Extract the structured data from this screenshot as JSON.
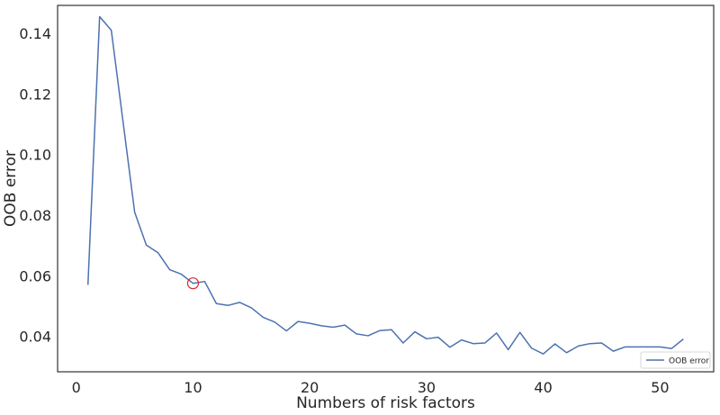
{
  "chart_data": {
    "type": "line",
    "xlabel": "Numbers of risk factors",
    "ylabel": "OOB error",
    "xlim": [
      -1.6,
      54.6
    ],
    "ylim": [
      0.0283,
      0.1492
    ],
    "xticks": [
      0,
      10,
      20,
      30,
      40,
      50
    ],
    "xtick_labels": [
      "0",
      "10",
      "20",
      "30",
      "40",
      "50"
    ],
    "yticks": [
      0.04,
      0.06,
      0.08,
      0.1,
      0.12,
      0.14
    ],
    "ytick_labels": [
      "0.04",
      "0.06",
      "0.08",
      "0.10",
      "0.12",
      "0.14"
    ],
    "grid": false,
    "legend": {
      "position": "lower-right",
      "entries": [
        "OOB error"
      ]
    },
    "series": [
      {
        "name": "OOB error",
        "color": "#4c72b0",
        "x": [
          1,
          2,
          3,
          4,
          5,
          6,
          7,
          8,
          9,
          10,
          11,
          12,
          13,
          14,
          15,
          16,
          17,
          18,
          19,
          20,
          21,
          22,
          23,
          24,
          25,
          26,
          27,
          28,
          29,
          30,
          31,
          32,
          33,
          34,
          35,
          36,
          37,
          38,
          39,
          40,
          41,
          42,
          43,
          44,
          45,
          46,
          47,
          48,
          49,
          50,
          51,
          52
        ],
        "values": [
          0.057,
          0.1455,
          0.141,
          0.111,
          0.081,
          0.0701,
          0.0676,
          0.062,
          0.0605,
          0.0575,
          0.0581,
          0.0508,
          0.0502,
          0.0512,
          0.0494,
          0.0463,
          0.0447,
          0.0418,
          0.0449,
          0.0443,
          0.0435,
          0.043,
          0.0437,
          0.0408,
          0.0402,
          0.0419,
          0.0422,
          0.0378,
          0.0415,
          0.0392,
          0.0397,
          0.0364,
          0.0388,
          0.0376,
          0.0378,
          0.0411,
          0.0356,
          0.0413,
          0.0361,
          0.0342,
          0.0375,
          0.0346,
          0.0368,
          0.0376,
          0.0378,
          0.0351,
          0.0365,
          0.0365,
          0.0365,
          0.0365,
          0.036,
          0.0391
        ]
      }
    ],
    "highlight": {
      "x": 10,
      "y": 0.0575,
      "color": "#d62728",
      "shape": "circle"
    }
  }
}
